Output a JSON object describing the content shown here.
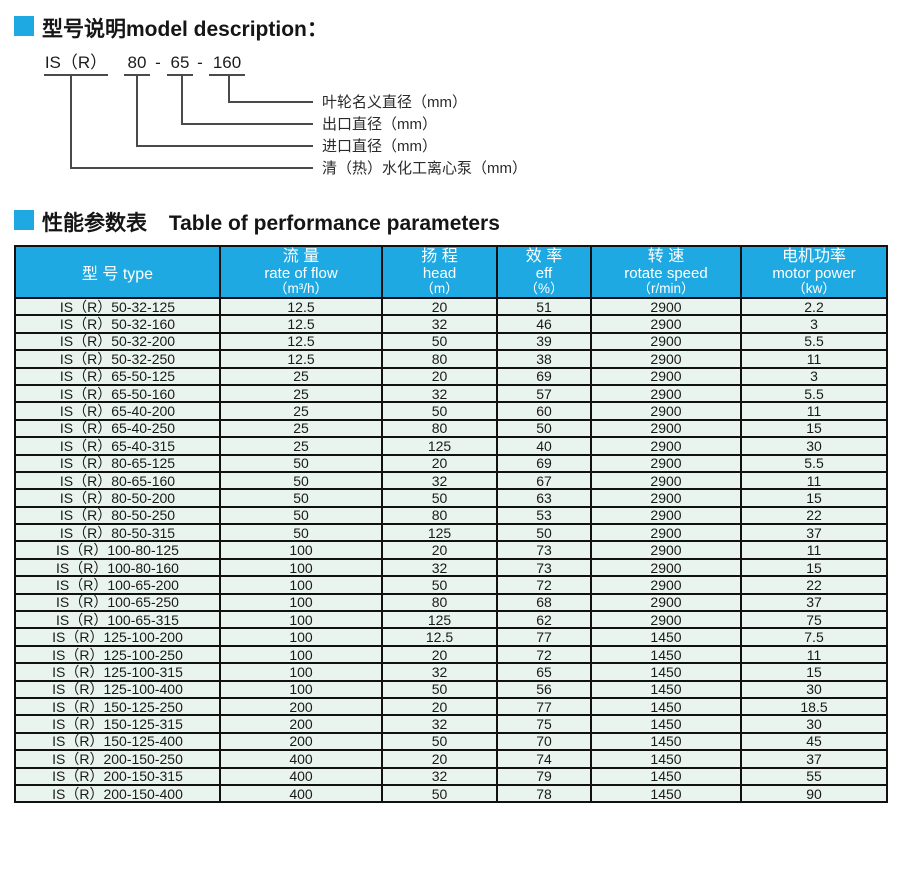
{
  "colors": {
    "accent": "#1fa9e2",
    "header_bg": "#1fa9e2",
    "header_text": "#ffffff",
    "row_bg": "#e9f4ef",
    "border": "#111111"
  },
  "section_model": {
    "title": "型号说明model description：",
    "code": {
      "series": "IS（R）",
      "separator": "-",
      "inlet": "80",
      "outlet": "65",
      "impeller": "160"
    },
    "callouts": [
      "叶轮名义直径（mm）",
      "出口直径（mm）",
      "进口直径（mm）",
      "清（热）水化工离心泵（mm）"
    ]
  },
  "section_table": {
    "title_zh": "性能参数表",
    "title_en": "Table of performance parameters"
  },
  "table": {
    "headers": [
      {
        "zh": "型 号 type",
        "en": "",
        "unit": ""
      },
      {
        "zh": "流 量",
        "en": "rate of flow",
        "unit": "（m³/h）"
      },
      {
        "zh": "扬 程",
        "en": "head",
        "unit": "（m）"
      },
      {
        "zh": "效 率",
        "en": "eff",
        "unit": "（%）"
      },
      {
        "zh": "转 速",
        "en": "rotate speed",
        "unit": "（r/min）"
      },
      {
        "zh": "电机功率",
        "en": "motor power",
        "unit": "（kw）"
      }
    ],
    "rows": [
      [
        "IS（R）50-32-125",
        "12.5",
        "20",
        "51",
        "2900",
        "2.2"
      ],
      [
        "IS（R）50-32-160",
        "12.5",
        "32",
        "46",
        "2900",
        "3"
      ],
      [
        "IS（R）50-32-200",
        "12.5",
        "50",
        "39",
        "2900",
        "5.5"
      ],
      [
        "IS（R）50-32-250",
        "12.5",
        "80",
        "38",
        "2900",
        "11"
      ],
      [
        "IS（R）65-50-125",
        "25",
        "20",
        "69",
        "2900",
        "3"
      ],
      [
        "IS（R）65-50-160",
        "25",
        "32",
        "57",
        "2900",
        "5.5"
      ],
      [
        "IS（R）65-40-200",
        "25",
        "50",
        "60",
        "2900",
        "11"
      ],
      [
        "IS（R）65-40-250",
        "25",
        "80",
        "50",
        "2900",
        "15"
      ],
      [
        "IS（R）65-40-315",
        "25",
        "125",
        "40",
        "2900",
        "30"
      ],
      [
        "IS（R）80-65-125",
        "50",
        "20",
        "69",
        "2900",
        "5.5"
      ],
      [
        "IS（R）80-65-160",
        "50",
        "32",
        "67",
        "2900",
        "11"
      ],
      [
        "IS（R）80-50-200",
        "50",
        "50",
        "63",
        "2900",
        "15"
      ],
      [
        "IS（R）80-50-250",
        "50",
        "80",
        "53",
        "2900",
        "22"
      ],
      [
        "IS（R）80-50-315",
        "50",
        "125",
        "50",
        "2900",
        "37"
      ],
      [
        "IS（R）100-80-125",
        "100",
        "20",
        "73",
        "2900",
        "11"
      ],
      [
        "IS（R）100-80-160",
        "100",
        "32",
        "73",
        "2900",
        "15"
      ],
      [
        "IS（R）100-65-200",
        "100",
        "50",
        "72",
        "2900",
        "22"
      ],
      [
        "IS（R）100-65-250",
        "100",
        "80",
        "68",
        "2900",
        "37"
      ],
      [
        "IS（R）100-65-315",
        "100",
        "125",
        "62",
        "2900",
        "75"
      ],
      [
        "IS（R）125-100-200",
        "100",
        "12.5",
        "77",
        "1450",
        "7.5"
      ],
      [
        "IS（R）125-100-250",
        "100",
        "20",
        "72",
        "1450",
        "11"
      ],
      [
        "IS（R）125-100-315",
        "100",
        "32",
        "65",
        "1450",
        "15"
      ],
      [
        "IS（R）125-100-400",
        "100",
        "50",
        "56",
        "1450",
        "30"
      ],
      [
        "IS（R）150-125-250",
        "200",
        "20",
        "77",
        "1450",
        "18.5"
      ],
      [
        "IS（R）150-125-315",
        "200",
        "32",
        "75",
        "1450",
        "30"
      ],
      [
        "IS（R）150-125-400",
        "200",
        "50",
        "70",
        "1450",
        "45"
      ],
      [
        "IS（R）200-150-250",
        "400",
        "20",
        "74",
        "1450",
        "37"
      ],
      [
        "IS（R）200-150-315",
        "400",
        "32",
        "79",
        "1450",
        "55"
      ],
      [
        "IS（R）200-150-400",
        "400",
        "50",
        "78",
        "1450",
        "90"
      ]
    ]
  }
}
